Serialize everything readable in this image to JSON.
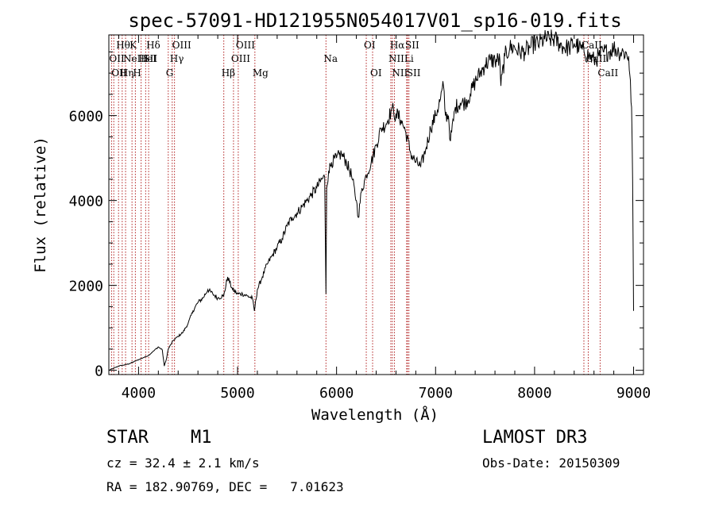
{
  "chart_data": {
    "type": "line",
    "title": "spec-57091-HD121955N054017V01_sp16-019.fits",
    "xlabel": "Wavelength (Å)",
    "ylabel": "Flux (relative)",
    "xlim": [
      3700,
      9100
    ],
    "ylim": [
      -100,
      7900
    ],
    "xticks": [
      4000,
      5000,
      6000,
      7000,
      8000,
      9000
    ],
    "yticks": [
      0,
      2000,
      4000,
      6000
    ],
    "series": [
      {
        "name": "spectrum",
        "color": "#000000",
        "x": [
          3700,
          3800,
          3900,
          4000,
          4050,
          4100,
          4150,
          4200,
          4240,
          4260,
          4280,
          4300,
          4350,
          4400,
          4450,
          4500,
          4550,
          4600,
          4650,
          4700,
          4750,
          4800,
          4850,
          4860,
          4900,
          4950,
          5000,
          5050,
          5100,
          5150,
          5170,
          5200,
          5250,
          5300,
          5350,
          5400,
          5450,
          5500,
          5550,
          5600,
          5650,
          5700,
          5750,
          5800,
          5850,
          5880,
          5893,
          5900,
          5920,
          5950,
          6000,
          6050,
          6100,
          6150,
          6200,
          6220,
          6250,
          6300,
          6350,
          6400,
          6450,
          6500,
          6550,
          6563,
          6580,
          6600,
          6650,
          6700,
          6750,
          6800,
          6850,
          6900,
          6950,
          7000,
          7050,
          7080,
          7100,
          7130,
          7150,
          7200,
          7250,
          7300,
          7350,
          7400,
          7450,
          7500,
          7550,
          7600,
          7650,
          7660,
          7700,
          7750,
          7800,
          7850,
          7900,
          7950,
          8000,
          8050,
          8100,
          8150,
          8200,
          8250,
          8300,
          8350,
          8400,
          8450,
          8500,
          8550,
          8600,
          8650,
          8700,
          8750,
          8800,
          8850,
          8900,
          8950,
          8980,
          8990,
          9000
        ],
        "values": [
          0,
          100,
          150,
          250,
          300,
          350,
          450,
          550,
          480,
          100,
          250,
          500,
          700,
          800,
          900,
          1100,
          1400,
          1600,
          1700,
          1900,
          1800,
          1700,
          1750,
          1750,
          2200,
          1900,
          1800,
          1800,
          1750,
          1700,
          1400,
          1900,
          2200,
          2500,
          2700,
          2900,
          3100,
          3400,
          3600,
          3700,
          3850,
          4000,
          4150,
          4300,
          4500,
          4550,
          1800,
          4300,
          4700,
          4900,
          5000,
          5100,
          4900,
          4600,
          4000,
          3600,
          4200,
          4600,
          4900,
          5300,
          5700,
          5800,
          6100,
          6200,
          6000,
          6050,
          5900,
          5600,
          5100,
          4900,
          4800,
          5200,
          5700,
          6000,
          6400,
          6700,
          6000,
          6000,
          5400,
          6200,
          6300,
          6300,
          6500,
          6800,
          7000,
          7200,
          7300,
          7300,
          7300,
          6700,
          7400,
          7600,
          7600,
          7500,
          7500,
          7600,
          7700,
          7700,
          7800,
          7800,
          7800,
          7700,
          7600,
          7600,
          7700,
          7600,
          7500,
          7400,
          7300,
          7400,
          7500,
          7500,
          7600,
          7500,
          7500,
          7400,
          6200,
          4500,
          1400
        ]
      }
    ],
    "spectral_lines": [
      {
        "wl": 3727,
        "label": "OII",
        "row": 2
      },
      {
        "wl": 3750,
        "label": "OII",
        "row": 3
      },
      {
        "wl": 3798,
        "label": "Hθ",
        "row": 1
      },
      {
        "wl": 3835,
        "label": "Hη",
        "row": 3
      },
      {
        "wl": 3869,
        "label": "NeIII",
        "row": 2
      },
      {
        "wl": 3934,
        "label": "K",
        "row": 1
      },
      {
        "wl": 3968,
        "label": "H",
        "row": 3
      },
      {
        "wl": 4026,
        "label": "HeI",
        "row": 2
      },
      {
        "wl": 4072,
        "label": "SII",
        "row": 2
      },
      {
        "wl": 4102,
        "label": "Hδ",
        "row": 1
      },
      {
        "wl": 4300,
        "label": "G",
        "row": 3
      },
      {
        "wl": 4340,
        "label": "Hγ",
        "row": 2
      },
      {
        "wl": 4363,
        "label": "OIII",
        "row": 1
      },
      {
        "wl": 4861,
        "label": "Hβ",
        "row": 3
      },
      {
        "wl": 4959,
        "label": "OIII",
        "row": 2
      },
      {
        "wl": 5007,
        "label": "OIII",
        "row": 1
      },
      {
        "wl": 5175,
        "label": "Mg",
        "row": 3
      },
      {
        "wl": 5893,
        "label": "Na",
        "row": 2
      },
      {
        "wl": 6300,
        "label": "OI",
        "row": 1
      },
      {
        "wl": 6364,
        "label": "OI",
        "row": 3
      },
      {
        "wl": 6548,
        "label": "NII",
        "row": 2
      },
      {
        "wl": 6563,
        "label": "Hα",
        "row": 1
      },
      {
        "wl": 6584,
        "label": "NII",
        "row": 3
      },
      {
        "wl": 6708,
        "label": "Li",
        "row": 2
      },
      {
        "wl": 6717,
        "label": "SII",
        "row": 1
      },
      {
        "wl": 6731,
        "label": "SII",
        "row": 3
      },
      {
        "wl": 8498,
        "label": "CaII",
        "row": 1
      },
      {
        "wl": 8542,
        "label": "CaII",
        "row": 2
      },
      {
        "wl": 8662,
        "label": "CaII",
        "row": 3
      }
    ]
  },
  "footer": {
    "classification": "STAR",
    "subclass": "M1",
    "survey": "LAMOST DR3",
    "cz": "cz = 32.4 ± 2.1 km/s",
    "obs_date": "Obs-Date: 20150309",
    "coords": "RA = 182.90769, DEC =   7.01623"
  }
}
